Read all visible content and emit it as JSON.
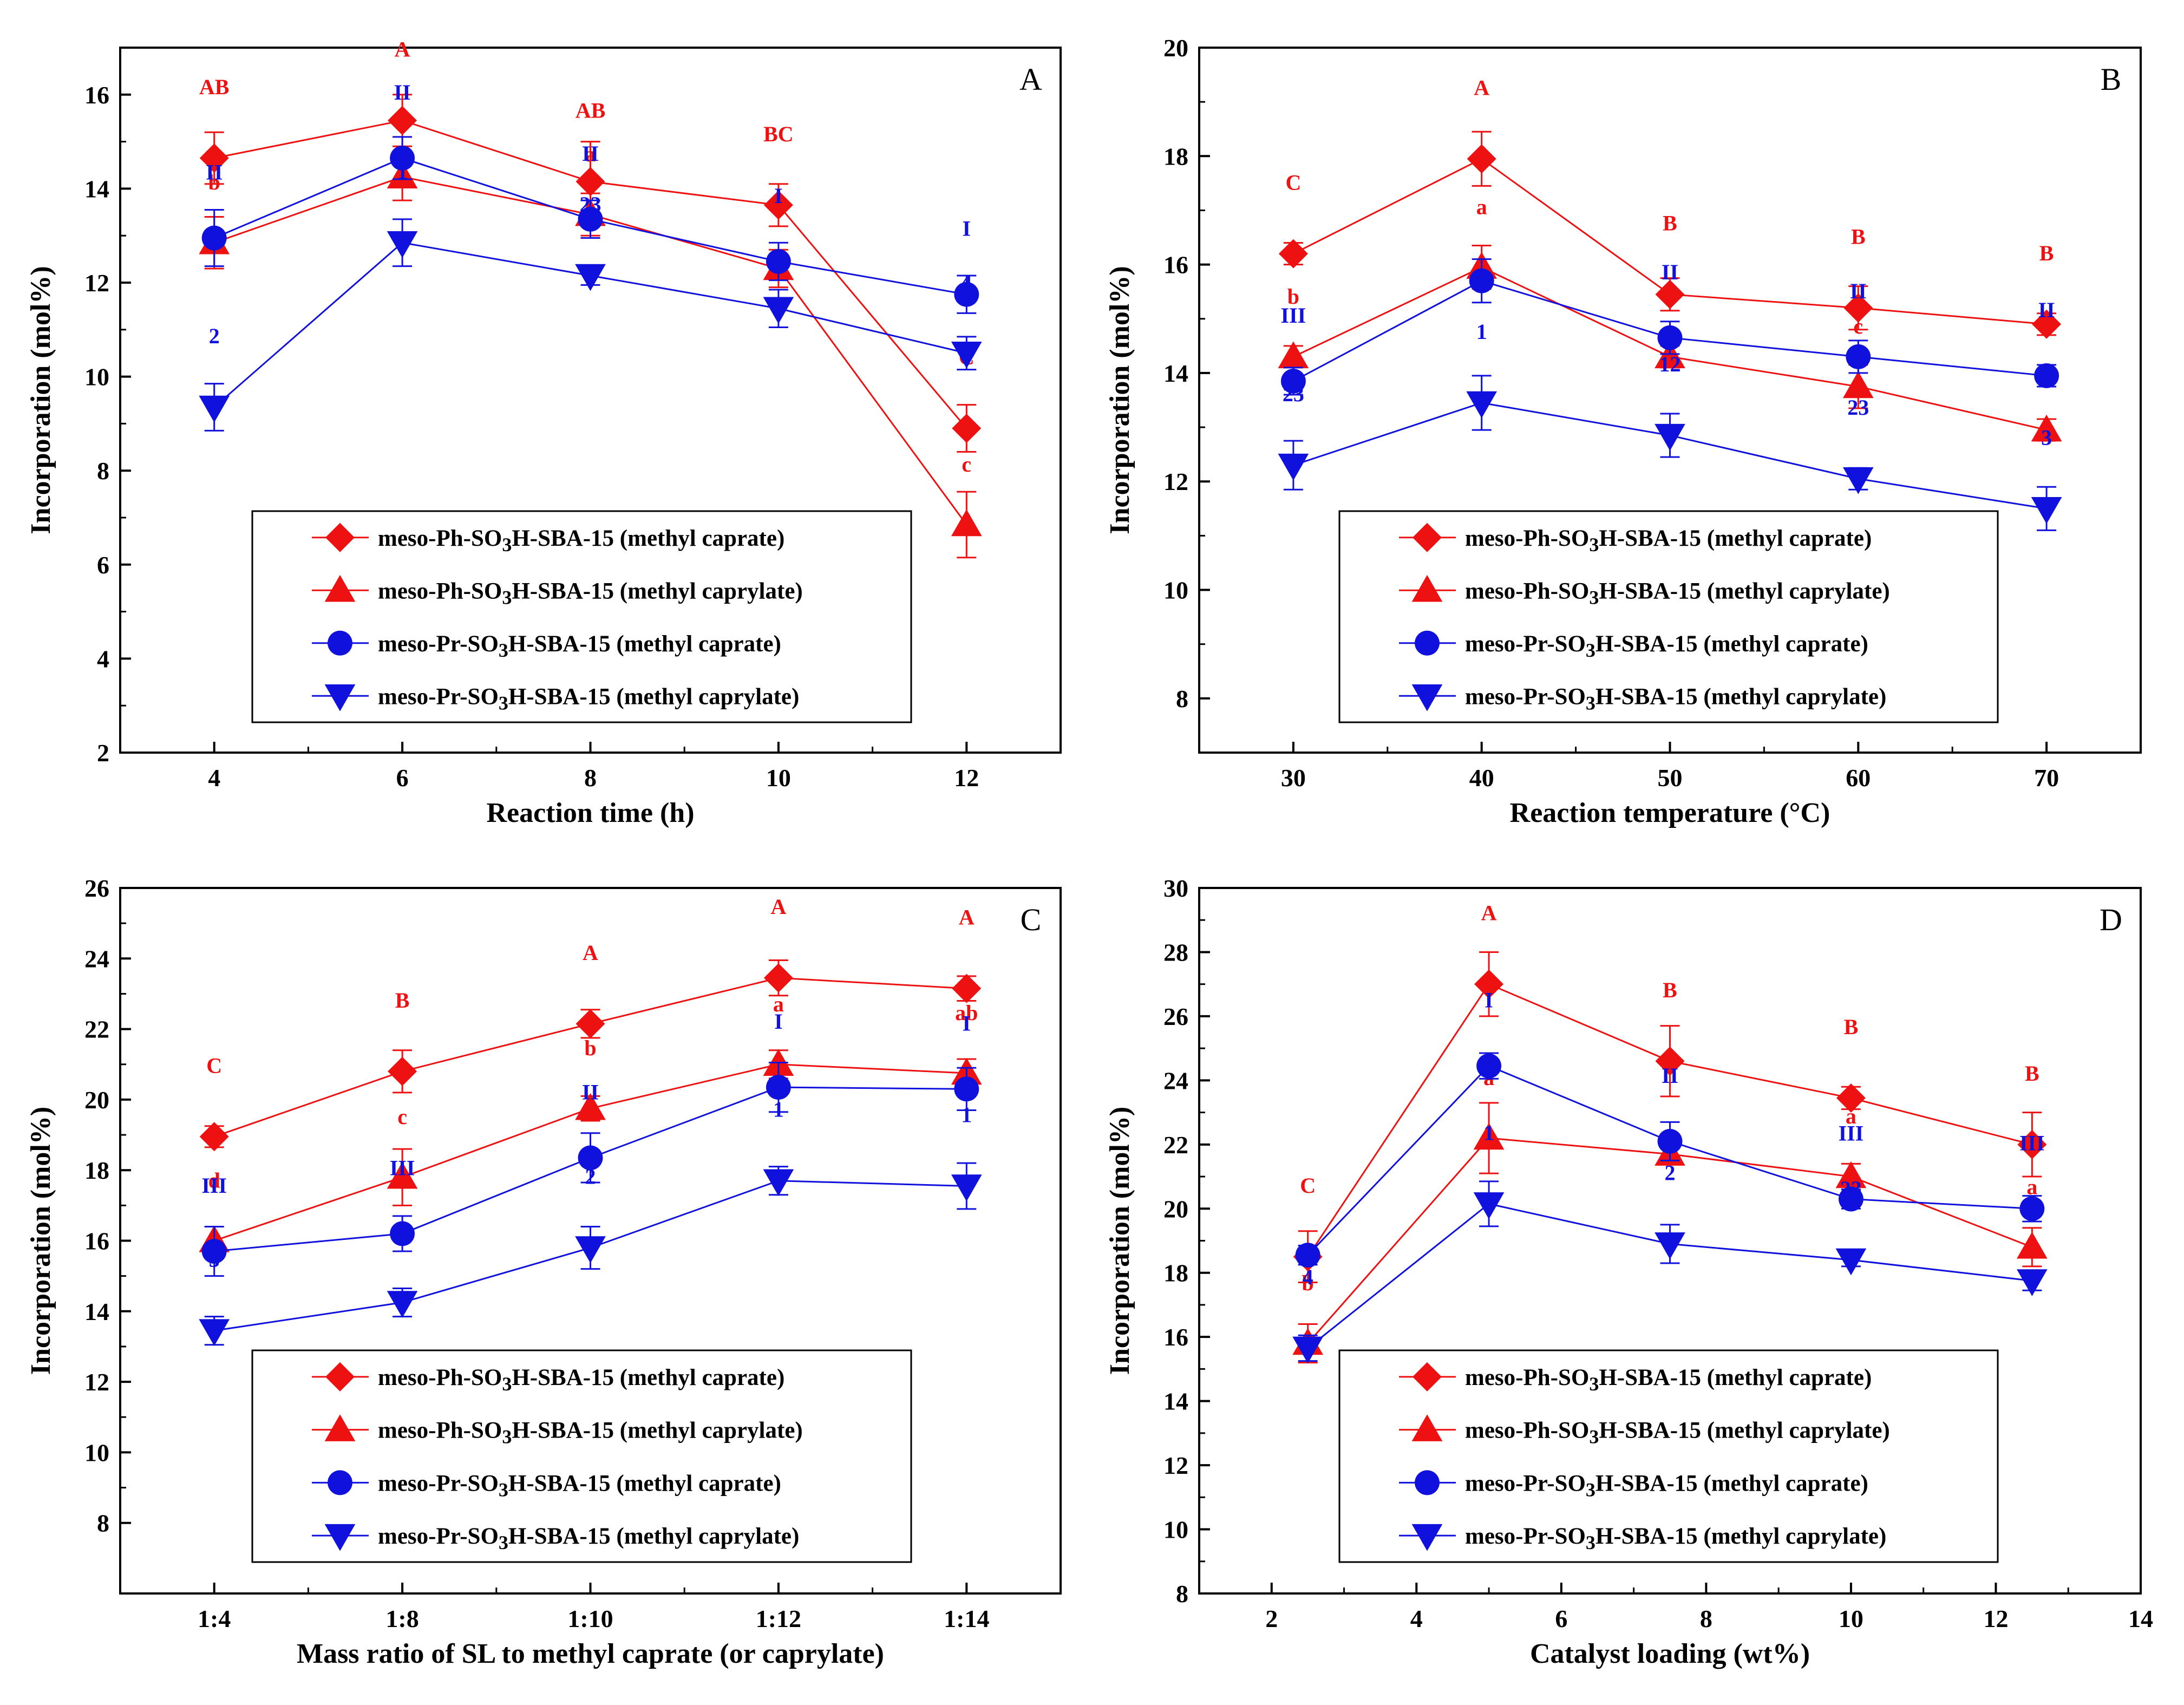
{
  "legend_entries": [
    {
      "prefix": "meso-Ph-SO",
      "sub": "3",
      "suffix": "H-SBA-15 (methyl caprate)",
      "marker": "diamond",
      "color": "#ee1111"
    },
    {
      "prefix": "meso-Ph-SO",
      "sub": "3",
      "suffix": "H-SBA-15 (methyl caprylate)",
      "marker": "triangle-up",
      "color": "#ee1111"
    },
    {
      "prefix": "meso-Pr-SO",
      "sub": "3",
      "suffix": "H-SBA-15 (methyl caprate)",
      "marker": "circle",
      "color": "#1111dd"
    },
    {
      "prefix": "meso-Pr-SO",
      "sub": "3",
      "suffix": "H-SBA-15 (methyl caprylate)",
      "marker": "triangle-down",
      "color": "#1111dd"
    }
  ],
  "colors": {
    "red": "#ee1111",
    "blue": "#1111dd",
    "axis": "#000000"
  },
  "chart_data": [
    {
      "panel": "A",
      "type": "line",
      "xlabel": "Reaction time (h)",
      "ylabel": "Incorporation (mol%)",
      "xlim": [
        3,
        13
      ],
      "ylim": [
        2,
        17
      ],
      "xticks": [
        4,
        6,
        8,
        10,
        12
      ],
      "xticklabels": [
        "4",
        "6",
        "8",
        "10",
        "12"
      ],
      "yticks": [
        2,
        4,
        6,
        8,
        10,
        12,
        14,
        16
      ],
      "series": [
        {
          "name": "meso-Ph-SO3H-SBA-15 (methyl caprate)",
          "marker": "diamond",
          "color": "#ee1111",
          "x": [
            4,
            6,
            8,
            10,
            12
          ],
          "y": [
            14.65,
            15.45,
            14.15,
            13.65,
            8.9
          ],
          "err": [
            0.55,
            0.55,
            0.85,
            0.45,
            0.5
          ],
          "labels": [
            "AB",
            "A",
            "AB",
            "BC",
            "C"
          ]
        },
        {
          "name": "meso-Ph-SO3H-SBA-15 (methyl caprylate)",
          "marker": "triangle-up",
          "color": "#ee1111",
          "x": [
            4,
            6,
            8,
            10,
            12
          ],
          "y": [
            12.85,
            14.25,
            13.45,
            12.3,
            6.85
          ],
          "err": [
            0.55,
            0.5,
            0.45,
            0.4,
            0.7
          ],
          "labels": [
            "b",
            "",
            "a",
            "c",
            "c"
          ]
        },
        {
          "name": "meso-Pr-SO3H-SBA-15 (methyl caprate)",
          "marker": "circle",
          "color": "#1111dd",
          "x": [
            4,
            6,
            8,
            10,
            12
          ],
          "y": [
            12.95,
            14.65,
            13.35,
            12.45,
            11.75
          ],
          "err": [
            0.6,
            0.45,
            0.4,
            0.4,
            0.4
          ],
          "labels": [
            "II",
            "II",
            "II",
            "I",
            "I"
          ]
        },
        {
          "name": "meso-Pr-SO3H-SBA-15 (methyl caprylate)",
          "marker": "triangle-down",
          "color": "#1111dd",
          "x": [
            4,
            6,
            8,
            10,
            12
          ],
          "y": [
            9.35,
            12.85,
            12.15,
            11.45,
            10.5
          ],
          "err": [
            0.5,
            0.5,
            0.2,
            0.4,
            0.35
          ],
          "labels": [
            "2",
            "1",
            "23",
            "",
            "4"
          ]
        }
      ]
    },
    {
      "panel": "B",
      "type": "line",
      "xlabel": "Reaction temperature (°C)",
      "ylabel": "Incorporation (mol%)",
      "xlim": [
        25,
        75
      ],
      "ylim": [
        7,
        20
      ],
      "xticks": [
        30,
        40,
        50,
        60,
        70
      ],
      "xticklabels": [
        "30",
        "40",
        "50",
        "60",
        "70"
      ],
      "yticks": [
        8,
        10,
        12,
        14,
        16,
        18,
        20
      ],
      "series": [
        {
          "name": "meso-Ph-SO3H-SBA-15 (methyl caprate)",
          "marker": "diamond",
          "color": "#ee1111",
          "x": [
            30,
            40,
            50,
            60,
            70
          ],
          "y": [
            16.2,
            17.95,
            15.45,
            15.2,
            14.9
          ],
          "err": [
            0.2,
            0.5,
            0.3,
            0.4,
            0.2
          ],
          "labels": [
            "C",
            "A",
            "B",
            "B",
            "B"
          ]
        },
        {
          "name": "meso-Ph-SO3H-SBA-15 (methyl caprylate)",
          "marker": "triangle-up",
          "color": "#ee1111",
          "x": [
            30,
            40,
            50,
            60,
            70
          ],
          "y": [
            14.3,
            15.95,
            14.3,
            13.75,
            12.95
          ],
          "err": [
            0.2,
            0.4,
            0.2,
            0.4,
            0.2
          ],
          "labels": [
            "b",
            "a",
            "",
            "c",
            "c"
          ]
        },
        {
          "name": "meso-Pr-SO3H-SBA-15 (methyl caprate)",
          "marker": "circle",
          "color": "#1111dd",
          "x": [
            30,
            40,
            50,
            60,
            70
          ],
          "y": [
            13.85,
            15.7,
            14.65,
            14.3,
            13.95
          ],
          "err": [
            0.25,
            0.4,
            0.3,
            0.3,
            0.2
          ],
          "labels": [
            "III",
            "",
            "II",
            "II",
            "II"
          ]
        },
        {
          "name": "meso-Pr-SO3H-SBA-15 (methyl caprylate)",
          "marker": "triangle-down",
          "color": "#1111dd",
          "x": [
            30,
            40,
            50,
            60,
            70
          ],
          "y": [
            12.3,
            13.45,
            12.85,
            12.05,
            11.5
          ],
          "err": [
            0.45,
            0.5,
            0.4,
            0.2,
            0.4
          ],
          "labels": [
            "23",
            "1",
            "12",
            "23",
            "3"
          ]
        }
      ]
    },
    {
      "panel": "C",
      "type": "line",
      "xlabel": "Mass ratio of SL to methyl caprate (or caprylate)",
      "ylabel": "Incorporation (mol%)",
      "xlim": [
        0.5,
        5.5
      ],
      "ylim": [
        6,
        26
      ],
      "xticks": [
        1,
        2,
        3,
        4,
        5
      ],
      "xticklabels": [
        "1:4",
        "1:8",
        "1:10",
        "1:12",
        "1:14"
      ],
      "yticks": [
        8,
        10,
        12,
        14,
        16,
        18,
        20,
        22,
        24,
        26
      ],
      "series": [
        {
          "name": "meso-Ph-SO3H-SBA-15 (methyl caprate)",
          "marker": "diamond",
          "color": "#ee1111",
          "x": [
            1,
            2,
            3,
            4,
            5
          ],
          "y": [
            18.95,
            20.8,
            22.15,
            23.45,
            23.15
          ],
          "err": [
            0.3,
            0.6,
            0.4,
            0.5,
            0.35
          ],
          "labels": [
            "C",
            "B",
            "A",
            "A",
            "A"
          ]
        },
        {
          "name": "meso-Ph-SO3H-SBA-15 (methyl caprylate)",
          "marker": "triangle-up",
          "color": "#ee1111",
          "x": [
            1,
            2,
            3,
            4,
            5
          ],
          "y": [
            16.0,
            17.8,
            19.75,
            21.0,
            20.75
          ],
          "err": [
            0.4,
            0.8,
            0.35,
            0.4,
            0.4
          ],
          "labels": [
            "d",
            "c",
            "b",
            "a",
            "ab"
          ]
        },
        {
          "name": "meso-Pr-SO3H-SBA-15 (methyl caprate)",
          "marker": "circle",
          "color": "#1111dd",
          "x": [
            1,
            2,
            3,
            4,
            5
          ],
          "y": [
            15.7,
            16.2,
            18.35,
            20.35,
            20.3
          ],
          "err": [
            0.7,
            0.5,
            0.7,
            0.7,
            0.6
          ],
          "labels": [
            "III",
            "III",
            "II",
            "I",
            "I"
          ]
        },
        {
          "name": "meso-Pr-SO3H-SBA-15 (methyl caprylate)",
          "marker": "triangle-down",
          "color": "#1111dd",
          "x": [
            1,
            2,
            3,
            4,
            5
          ],
          "y": [
            13.45,
            14.25,
            15.8,
            17.7,
            17.55
          ],
          "err": [
            0.4,
            0.4,
            0.6,
            0.4,
            0.65
          ],
          "labels": [
            "3",
            "3",
            "2",
            "1",
            "1"
          ]
        }
      ]
    },
    {
      "panel": "D",
      "type": "line",
      "xlabel": "Catalyst loading (wt%)",
      "ylabel": "Incorporation (mol%)",
      "xlim": [
        1,
        14
      ],
      "ylim": [
        8,
        30
      ],
      "xticks": [
        2,
        4,
        6,
        8,
        10,
        12,
        14
      ],
      "xticklabels": [
        "2",
        "4",
        "6",
        "8",
        "10",
        "12",
        "14"
      ],
      "yticks": [
        8,
        10,
        12,
        14,
        16,
        18,
        20,
        22,
        24,
        26,
        28,
        30
      ],
      "series": [
        {
          "name": "meso-Ph-SO3H-SBA-15 (methyl caprate)",
          "marker": "diamond",
          "color": "#ee1111",
          "x": [
            2.5,
            5,
            7.5,
            10,
            12.5
          ],
          "y": [
            18.5,
            27.0,
            24.6,
            23.45,
            22.0
          ],
          "err": [
            0.8,
            1.0,
            1.1,
            0.35,
            1.0
          ],
          "labels": [
            "C",
            "A",
            "B",
            "B",
            "B"
          ]
        },
        {
          "name": "meso-Ph-SO3H-SBA-15 (methyl caprylate)",
          "marker": "triangle-up",
          "color": "#ee1111",
          "x": [
            2.5,
            5,
            7.5,
            10,
            12.5
          ],
          "y": [
            15.8,
            22.2,
            21.7,
            21.0,
            18.8
          ],
          "err": [
            0.6,
            1.1,
            0.3,
            0.4,
            0.6
          ],
          "labels": [
            "b",
            "a",
            "",
            "a",
            "a"
          ]
        },
        {
          "name": "meso-Pr-SO3H-SBA-15 (methyl caprate)",
          "marker": "circle",
          "color": "#1111dd",
          "x": [
            2.5,
            5,
            7.5,
            10,
            12.5
          ],
          "y": [
            18.55,
            24.45,
            22.1,
            20.3,
            20.0
          ],
          "err": [
            0.3,
            0.4,
            0.6,
            0.3,
            0.4
          ],
          "labels": [
            "",
            "I",
            "II",
            "III",
            "III"
          ]
        },
        {
          "name": "meso-Pr-SO3H-SBA-15 (methyl caprylate)",
          "marker": "triangle-down",
          "color": "#1111dd",
          "x": [
            2.5,
            5,
            7.5,
            10,
            12.5
          ],
          "y": [
            15.65,
            20.15,
            18.9,
            18.4,
            17.75
          ],
          "err": [
            0.4,
            0.7,
            0.6,
            0.2,
            0.3
          ],
          "labels": [
            "4",
            "1",
            "2",
            "23",
            ""
          ]
        }
      ]
    }
  ]
}
